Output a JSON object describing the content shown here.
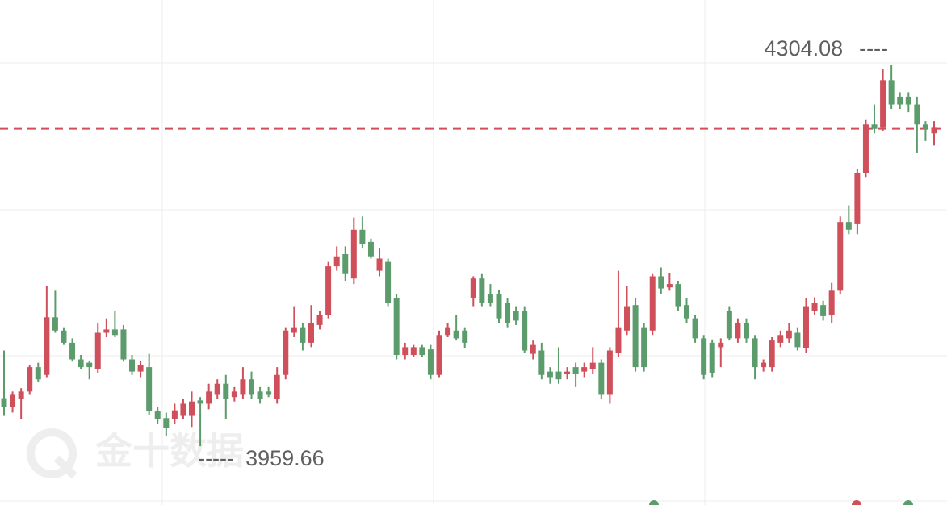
{
  "chart_data": {
    "type": "candlestick",
    "open": [
      4003,
      3995,
      4002,
      4009,
      4031,
      4024,
      4076,
      4064,
      4053,
      4038,
      4035,
      4029,
      4062,
      4065,
      4065,
      4038,
      4027,
      4031,
      3991,
      3985,
      3984,
      3987,
      3987,
      4001,
      3998,
      4006,
      4016,
      4004,
      4006,
      4020,
      4009,
      4009,
      4002,
      4024,
      4062,
      4067,
      4053,
      4069,
      4078,
      4122,
      4133,
      4111,
      4155,
      4144,
      4118,
      4126,
      4093,
      4042,
      4042,
      4049,
      4047,
      4024,
      4060,
      4064,
      4064,
      4093,
      4111,
      4097,
      4097,
      4089,
      4082,
      4082,
      4043,
      4046,
      4027,
      4027,
      4025,
      4031,
      4027,
      4029,
      4035,
      4006,
      4044,
      4064,
      4087,
      4067,
      4064,
      4113,
      4103,
      4106,
      4087,
      4075,
      4057,
      4053,
      4049,
      4082,
      4057,
      4071,
      4057,
      4031,
      4031,
      4053,
      4057,
      4062,
      4048,
      4082,
      4087,
      4078,
      4100,
      4162,
      4160,
      4206,
      4250,
      4247,
      4290,
      4275,
      4275,
      4268,
      4250,
      4242
    ],
    "high": [
      4046,
      4009,
      4012,
      4033,
      4035,
      4104,
      4100,
      4067,
      4057,
      4042,
      4037,
      4071,
      4075,
      4082,
      4069,
      4042,
      4037,
      4043,
      3995,
      3990,
      3998,
      4002,
      4009,
      4004,
      4016,
      4020,
      4024,
      4013,
      4031,
      4027,
      4013,
      4013,
      4031,
      4067,
      4086,
      4071,
      4087,
      4082,
      4126,
      4140,
      4140,
      4166,
      4167,
      4147,
      4138,
      4129,
      4097,
      4053,
      4051,
      4051,
      4051,
      4064,
      4071,
      4078,
      4067,
      4113,
      4115,
      4106,
      4101,
      4093,
      4086,
      4086,
      4055,
      4053,
      4031,
      4049,
      4031,
      4035,
      4035,
      4049,
      4038,
      4049,
      4118,
      4104,
      4093,
      4071,
      4115,
      4121,
      4116,
      4109,
      4093,
      4078,
      4060,
      4056,
      4057,
      4086,
      4075,
      4075,
      4060,
      4038,
      4058,
      4064,
      4071,
      4067,
      4093,
      4094,
      4091,
      4107,
      4167,
      4177,
      4210,
      4254,
      4268,
      4300,
      4304.08,
      4279,
      4279,
      4275,
      4253,
      4253
    ],
    "low": [
      3987,
      3990,
      3984,
      4006,
      4018,
      4022,
      4062,
      4051,
      4036,
      4029,
      4020,
      4026,
      4058,
      4058,
      4036,
      4024,
      4022,
      3988,
      3980,
      3969,
      3980,
      3984,
      3977,
      3959.66,
      3993,
      4002,
      3984,
      4000,
      4002,
      4002,
      3998,
      4004,
      3998,
      4020,
      4058,
      4046,
      4049,
      4065,
      4075,
      4118,
      4109,
      4106,
      4138,
      4129,
      4113,
      4086,
      4038,
      4038,
      4040,
      4040,
      4020,
      4022,
      4058,
      4055,
      4048,
      4086,
      4086,
      4086,
      4071,
      4067,
      4069,
      4044,
      4038,
      4020,
      4016,
      4016,
      4020,
      4013,
      4022,
      4025,
      4002,
      3998,
      4040,
      4060,
      4027,
      4027,
      4060,
      4097,
      4100,
      4082,
      4071,
      4053,
      4020,
      4022,
      4031,
      4055,
      4053,
      4053,
      4020,
      4027,
      4027,
      4049,
      4053,
      4046,
      4044,
      4078,
      4073,
      4071,
      4097,
      4151,
      4151,
      4202,
      4242,
      4244,
      4264,
      4264,
      4261,
      4224,
      4235,
      4231
    ],
    "close": [
      3995,
      4006,
      4009,
      4031,
      4020,
      4076,
      4064,
      4053,
      4038,
      4031,
      4031,
      4062,
      4065,
      4060,
      4038,
      4027,
      4033,
      3991,
      3984,
      3976,
      3992,
      3998,
      4000,
      3998,
      4009,
      4016,
      4002,
      4009,
      4020,
      4006,
      4002,
      4006,
      4024,
      4064,
      4067,
      4053,
      4071,
      4078,
      4122,
      4131,
      4115,
      4155,
      4142,
      4131,
      4129,
      4089,
      4042,
      4049,
      4049,
      4042,
      4024,
      4060,
      4067,
      4057,
      4053,
      4111,
      4089,
      4089,
      4075,
      4071,
      4073,
      4046,
      4051,
      4024,
      4022,
      4020,
      4027,
      4025,
      4031,
      4035,
      4006,
      4046,
      4067,
      4086,
      4031,
      4031,
      4113,
      4102,
      4106,
      4086,
      4075,
      4057,
      4024,
      4026,
      4053,
      4057,
      4071,
      4057,
      4031,
      4035,
      4055,
      4060,
      4064,
      4049,
      4086,
      4089,
      4077,
      4100,
      4162,
      4155,
      4206,
      4250,
      4246,
      4290,
      4268,
      4268,
      4268,
      4250,
      4246,
      4247
    ],
    "up_color": "#cf4f5b",
    "down_color": "#5c9c6c",
    "ylim": [
      3906.6,
      4362.3
    ],
    "last_price": 4246.1,
    "watermark": "金十数据"
  }
}
